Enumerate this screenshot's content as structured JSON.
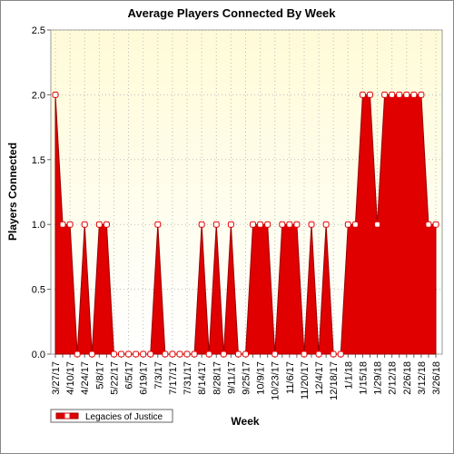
{
  "chart_data": {
    "type": "area",
    "title": "Average Players Connected By Week",
    "x_label": "Week",
    "y_label": "Players Connected",
    "categories": [
      "3/27/17",
      null,
      "4/10/17",
      null,
      "4/24/17",
      null,
      "5/8/17",
      null,
      "5/22/17",
      null,
      "6/5/17",
      null,
      "6/19/17",
      null,
      "7/3/17",
      null,
      "7/17/17",
      null,
      "7/31/17",
      null,
      "8/14/17",
      null,
      "8/28/17",
      null,
      "9/11/17",
      null,
      "9/25/17",
      null,
      "10/9/17",
      null,
      "10/23/17",
      null,
      "11/6/17",
      null,
      "11/20/17",
      null,
      "12/4/17",
      null,
      "12/18/17",
      null,
      "1/1/18",
      null,
      "1/15/18",
      null,
      "1/29/18",
      null,
      "2/12/18",
      null,
      "2/26/18",
      null,
      "3/12/18",
      null,
      "3/26/18"
    ],
    "series": [
      {
        "name": "Legacies of Justice",
        "color": "#e00000",
        "values": [
          2,
          1,
          1,
          0,
          1,
          0,
          1,
          1,
          0,
          0,
          0,
          0,
          0,
          0,
          1,
          0,
          0,
          0,
          0,
          0,
          1,
          0,
          1,
          0,
          1,
          0,
          0,
          1,
          1,
          1,
          0,
          1,
          1,
          1,
          0,
          1,
          0,
          1,
          0,
          0,
          1,
          1,
          2,
          2,
          1,
          2,
          2,
          2,
          2,
          2,
          2,
          1,
          1
        ]
      }
    ],
    "ylim": [
      0,
      2.5
    ],
    "yticks": [
      {
        "value": 0,
        "label": "0.0"
      },
      {
        "value": 0.5,
        "label": "0.5"
      },
      {
        "value": 1,
        "label": "1.0"
      },
      {
        "value": 1.5,
        "label": "1.5"
      },
      {
        "value": 2,
        "label": "2.0"
      },
      {
        "value": 2.5,
        "label": "2.5"
      }
    ],
    "grid": true,
    "legend": "bottom-left"
  }
}
